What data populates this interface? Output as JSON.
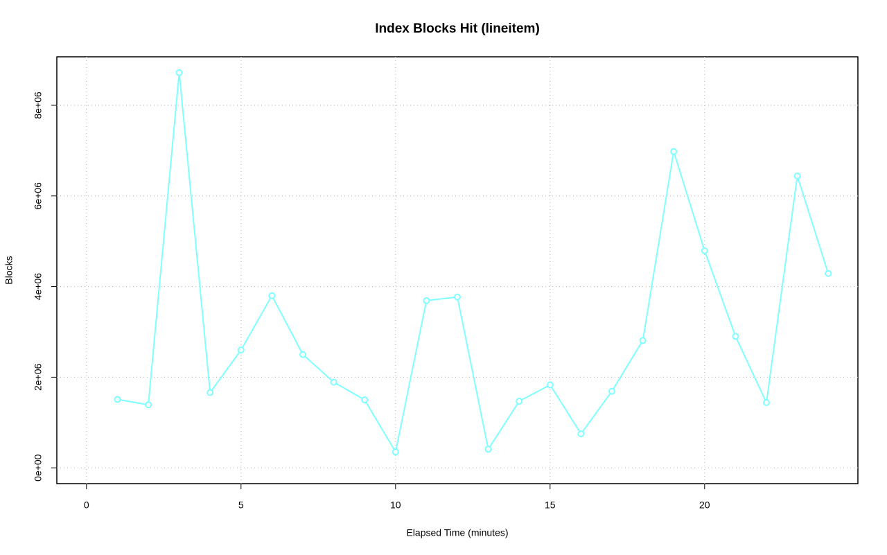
{
  "chart_data": {
    "type": "line",
    "title": "Index Blocks Hit (lineitem)",
    "xlabel": "Elapsed Time (minutes)",
    "ylabel": "Blocks",
    "x": [
      1,
      2,
      3,
      4,
      5,
      6,
      7,
      8,
      9,
      10,
      11,
      12,
      13,
      14,
      15,
      16,
      17,
      18,
      19,
      20,
      21,
      22,
      23,
      24
    ],
    "values": [
      1510000,
      1390000,
      8720000,
      1660000,
      2600000,
      3800000,
      2500000,
      1890000,
      1500000,
      350000,
      3690000,
      3770000,
      410000,
      1470000,
      1830000,
      750000,
      1690000,
      2810000,
      6980000,
      4790000,
      2900000,
      1440000,
      6440000,
      4290000
    ],
    "color": "#7fffff",
    "xlim": [
      -0.96,
      24.96
    ],
    "ylim": [
      -349000,
      9070000
    ],
    "xticks": [
      0,
      5,
      10,
      15,
      20
    ],
    "yticks": [
      {
        "value": 0,
        "label": "0e+00"
      },
      {
        "value": 2000000,
        "label": "2e+06"
      },
      {
        "value": 4000000,
        "label": "4e+06"
      },
      {
        "value": 6000000,
        "label": "6e+06"
      },
      {
        "value": 8000000,
        "label": "8e+06"
      }
    ],
    "grid": true
  }
}
